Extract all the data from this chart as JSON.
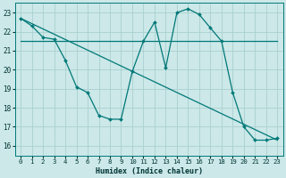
{
  "xlabel": "Humidex (Indice chaleur)",
  "xlim": [
    -0.5,
    23.5
  ],
  "ylim": [
    15.5,
    23.5
  ],
  "yticks": [
    16,
    17,
    18,
    19,
    20,
    21,
    22,
    23
  ],
  "xticks": [
    0,
    1,
    2,
    3,
    4,
    5,
    6,
    7,
    8,
    9,
    10,
    11,
    12,
    13,
    14,
    15,
    16,
    17,
    18,
    19,
    20,
    21,
    22,
    23
  ],
  "bg_color": "#cce8e8",
  "grid_color": "#aad0d0",
  "line_color": "#007878",
  "lines": [
    {
      "x": [
        0,
        1,
        2,
        3,
        4,
        5,
        6,
        7,
        8,
        9,
        10,
        11,
        12,
        13,
        14,
        15,
        16,
        17,
        18,
        19,
        20,
        21,
        22,
        23
      ],
      "y": [
        22.7,
        22.3,
        21.7,
        21.6,
        20.5,
        19.1,
        18.8,
        17.6,
        17.4,
        17.4,
        19.9,
        21.5,
        22.5,
        20.1,
        23.0,
        23.2,
        22.9,
        22.2,
        21.5,
        18.8,
        17.0,
        16.3,
        16.3,
        16.4
      ],
      "marker": true
    },
    {
      "x": [
        0,
        23
      ],
      "y": [
        21.5,
        21.5
      ],
      "marker": false
    },
    {
      "x": [
        0,
        23
      ],
      "y": [
        22.7,
        16.3
      ],
      "marker": false
    }
  ]
}
